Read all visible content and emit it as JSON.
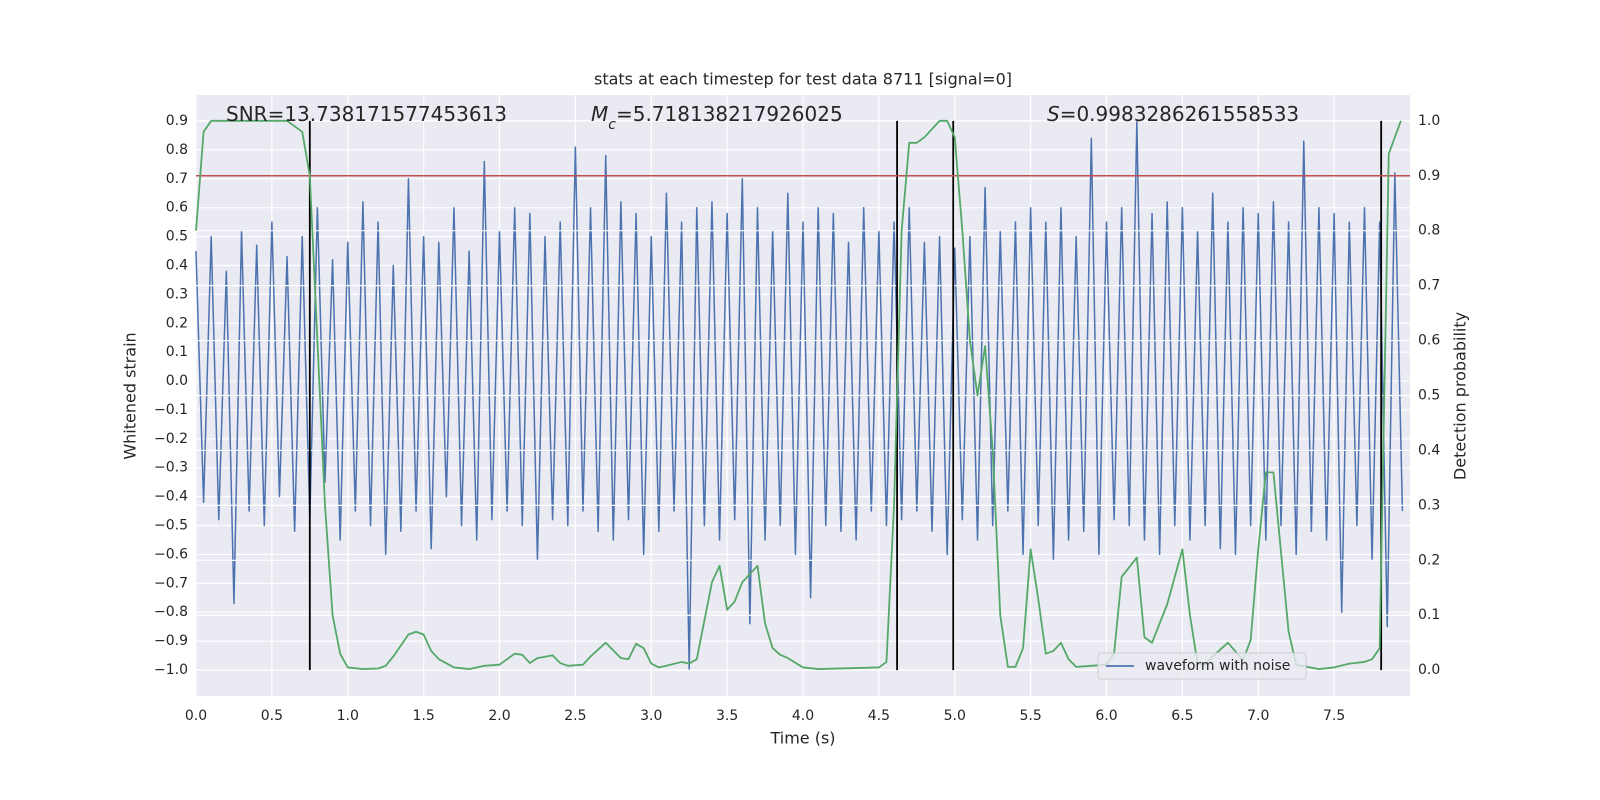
{
  "chart_data": {
    "type": "line",
    "title": "stats at each timestep for test data 8711 [signal=0]",
    "x_label": "Time (s)",
    "y_label": "Whitened strain",
    "y2_label": "Detection probability",
    "annotations": [
      {
        "symbol": "SNR",
        "text": "=13.738171577453613"
      },
      {
        "symbol": "M",
        "subscript": "c",
        "italic": true,
        "text": "=5.718138217926025"
      },
      {
        "symbol": "S",
        "italic": true,
        "text": "=0.9983286261558533"
      }
    ],
    "xlim": [
      0,
      8
    ],
    "xticks": [
      {
        "value": 0,
        "label": "0.0"
      },
      0.5,
      {
        "value": 1,
        "label": "1.0"
      },
      1.5,
      {
        "value": 2,
        "label": "2.0"
      },
      2.5,
      {
        "value": 3,
        "label": "3.0"
      },
      3.5,
      {
        "value": 4,
        "label": "4.0"
      },
      4.5,
      {
        "value": 5,
        "label": "5.0"
      },
      5.5,
      {
        "value": 6,
        "label": "6.0"
      },
      6.5,
      {
        "value": 7,
        "label": "7.0"
      },
      7.5
    ],
    "ylim": [
      -1.09,
      0.99
    ],
    "yticks": [
      {
        "value": -1,
        "label": "−1.0"
      },
      {
        "value": -0.9,
        "label": "−0.9"
      },
      {
        "value": -0.8,
        "label": "−0.8"
      },
      {
        "value": -0.7,
        "label": "−0.7"
      },
      {
        "value": -0.6,
        "label": "−0.6"
      },
      {
        "value": -0.5,
        "label": "−0.5"
      },
      {
        "value": -0.4,
        "label": "−0.4"
      },
      {
        "value": -0.3,
        "label": "−0.3"
      },
      {
        "value": -0.2,
        "label": "−0.2"
      },
      {
        "value": -0.1,
        "label": "−0.1"
      },
      {
        "value": 0,
        "label": "0.0"
      },
      0.1,
      0.2,
      0.3,
      0.4,
      0.5,
      0.6,
      0.7,
      0.8,
      0.9
    ],
    "y2lim": [
      -0.047,
      1.047
    ],
    "y2ticks": [
      {
        "value": 0,
        "label": "0.0"
      },
      0.1,
      0.2,
      0.3,
      0.4,
      0.5,
      0.6,
      0.7,
      0.8,
      0.9,
      {
        "value": 1,
        "label": "1.0"
      }
    ],
    "grid": true,
    "legend": "lower right",
    "series": [
      {
        "name": "waveform with noise",
        "color": "#4c72b0",
        "x": [
          0,
          0.05,
          0.1,
          0.15,
          0.2,
          0.25,
          0.3,
          0.35,
          0.4,
          0.45,
          0.5,
          0.55,
          0.6,
          0.65,
          0.7,
          0.75,
          0.8,
          0.85,
          0.9,
          0.95,
          1,
          1.05,
          1.1,
          1.15,
          1.2,
          1.25,
          1.3,
          1.35,
          1.4,
          1.45,
          1.5,
          1.55,
          1.6,
          1.65,
          1.7,
          1.75,
          1.8,
          1.85,
          1.9,
          1.95,
          2,
          2.05,
          2.1,
          2.15,
          2.2,
          2.25,
          2.3,
          2.35,
          2.4,
          2.45,
          2.5,
          2.55,
          2.6,
          2.65,
          2.7,
          2.75,
          2.8,
          2.85,
          2.9,
          2.95,
          3,
          3.05,
          3.1,
          3.15,
          3.2,
          3.25,
          3.3,
          3.35,
          3.4,
          3.45,
          3.5,
          3.55,
          3.6,
          3.65,
          3.7,
          3.75,
          3.8,
          3.85,
          3.9,
          3.95,
          4,
          4.05,
          4.1,
          4.15,
          4.2,
          4.25,
          4.3,
          4.35,
          4.4,
          4.45,
          4.5,
          4.55,
          4.6,
          4.65,
          4.7,
          4.75,
          4.8,
          4.85,
          4.9,
          4.95,
          5,
          5.05,
          5.1,
          5.15,
          5.2,
          5.25,
          5.3,
          5.35,
          5.4,
          5.45,
          5.5,
          5.55,
          5.6,
          5.65,
          5.7,
          5.75,
          5.8,
          5.85,
          5.9,
          5.95,
          6,
          6.05,
          6.1,
          6.15,
          6.2,
          6.25,
          6.3,
          6.35,
          6.4,
          6.45,
          6.5,
          6.55,
          6.6,
          6.65,
          6.7,
          6.75,
          6.8,
          6.85,
          6.9,
          6.95,
          7,
          7.05,
          7.1,
          7.15,
          7.2,
          7.25,
          7.3,
          7.35,
          7.4,
          7.45,
          7.5,
          7.55,
          7.6,
          7.65,
          7.7,
          7.75,
          7.8,
          7.85,
          7.9,
          7.95
        ],
        "values": [
          0.45,
          -0.42,
          0.5,
          -0.48,
          0.38,
          -0.77,
          0.52,
          -0.45,
          0.47,
          -0.5,
          0.55,
          -0.4,
          0.43,
          -0.52,
          0.5,
          -0.48,
          0.6,
          -0.35,
          0.42,
          -0.55,
          0.48,
          -0.45,
          0.62,
          -0.5,
          0.55,
          -0.6,
          0.4,
          -0.52,
          0.7,
          -0.45,
          0.5,
          -0.58,
          0.48,
          -0.4,
          0.6,
          -0.5,
          0.45,
          -0.55,
          0.76,
          -0.48,
          0.52,
          -0.45,
          0.6,
          -0.5,
          0.58,
          -0.62,
          0.5,
          -0.48,
          0.55,
          -0.5,
          0.81,
          -0.45,
          0.6,
          -0.52,
          0.78,
          -0.55,
          0.62,
          -0.48,
          0.58,
          -0.6,
          0.5,
          -0.52,
          0.65,
          -0.45,
          0.55,
          -1.0,
          0.6,
          -0.5,
          0.62,
          -0.55,
          0.58,
          -0.48,
          0.7,
          -0.84,
          0.6,
          -0.55,
          0.52,
          -0.5,
          0.65,
          -0.6,
          0.55,
          -0.75,
          0.6,
          -0.5,
          0.58,
          -0.52,
          0.48,
          -0.55,
          0.6,
          -0.45,
          0.52,
          -0.5,
          0.55,
          -0.48,
          0.6,
          -0.45,
          0.48,
          -0.52,
          0.5,
          -0.6,
          0.46,
          -0.48,
          0.5,
          -0.55,
          0.67,
          -0.5,
          0.52,
          -0.45,
          0.55,
          -0.6,
          0.6,
          -0.5,
          0.55,
          -0.62,
          0.6,
          -0.55,
          0.5,
          -0.52,
          0.84,
          -0.6,
          0.55,
          -0.48,
          0.6,
          -0.5,
          0.9,
          -0.55,
          0.58,
          -0.6,
          0.62,
          -0.5,
          0.6,
          -0.55,
          0.52,
          -0.5,
          0.65,
          -0.58,
          0.55,
          -0.6,
          0.6,
          -0.5,
          0.58,
          -0.55,
          0.62,
          -0.5,
          0.55,
          -0.6,
          0.83,
          -0.52,
          0.6,
          -0.55,
          0.58,
          -0.8,
          0.55,
          -0.5,
          0.6,
          -0.62,
          0.55,
          -0.85,
          0.72,
          -0.45
        ]
      },
      {
        "color": "#55a868",
        "axis": "y2",
        "x": [
          0,
          0.05,
          0.1,
          0.2,
          0.3,
          0.4,
          0.5,
          0.6,
          0.65,
          0.7,
          0.75,
          0.8,
          0.85,
          0.9,
          0.95,
          1,
          1.1,
          1.2,
          1.25,
          1.3,
          1.4,
          1.45,
          1.5,
          1.55,
          1.6,
          1.7,
          1.8,
          1.9,
          2,
          2.1,
          2.15,
          2.2,
          2.25,
          2.35,
          2.4,
          2.45,
          2.55,
          2.6,
          2.7,
          2.8,
          2.85,
          2.9,
          2.95,
          3,
          3.05,
          3.1,
          3.2,
          3.25,
          3.3,
          3.4,
          3.45,
          3.5,
          3.55,
          3.6,
          3.7,
          3.75,
          3.8,
          3.85,
          3.9,
          4,
          4.1,
          4.5,
          4.55,
          4.6,
          4.65,
          4.7,
          4.75,
          4.8,
          4.9,
          4.95,
          5,
          5.05,
          5.1,
          5.15,
          5.2,
          5.25,
          5.3,
          5.35,
          5.4,
          5.45,
          5.5,
          5.55,
          5.6,
          5.65,
          5.7,
          5.75,
          5.8,
          5.9,
          6,
          6.05,
          6.1,
          6.2,
          6.25,
          6.3,
          6.4,
          6.5,
          6.55,
          6.6,
          6.65,
          6.7,
          6.8,
          6.9,
          6.95,
          7,
          7.05,
          7.1,
          7.2,
          7.25,
          7.4,
          7.5,
          7.6,
          7.7,
          7.75,
          7.8,
          7.86,
          7.94
        ],
        "values": [
          0.8,
          0.98,
          1,
          1,
          1,
          1,
          1,
          1,
          0.99,
          0.98,
          0.9,
          0.6,
          0.3,
          0.1,
          0.03,
          0.005,
          0.002,
          0.003,
          0.008,
          0.025,
          0.065,
          0.07,
          0.065,
          0.035,
          0.02,
          0.005,
          0.002,
          0.008,
          0.01,
          0.03,
          0.028,
          0.013,
          0.022,
          0.027,
          0.013,
          0.008,
          0.01,
          0.025,
          0.05,
          0.022,
          0.02,
          0.048,
          0.04,
          0.012,
          0.005,
          0.008,
          0.015,
          0.012,
          0.02,
          0.16,
          0.19,
          0.11,
          0.125,
          0.16,
          0.19,
          0.085,
          0.04,
          0.028,
          0.022,
          0.005,
          0.002,
          0.005,
          0.015,
          0.3,
          0.8,
          0.96,
          0.96,
          0.97,
          1,
          1,
          0.97,
          0.8,
          0.6,
          0.5,
          0.59,
          0.4,
          0.1,
          0.006,
          0.006,
          0.04,
          0.22,
          0.13,
          0.03,
          0.035,
          0.05,
          0.02,
          0.006,
          0.008,
          0.01,
          0.03,
          0.17,
          0.205,
          0.06,
          0.05,
          0.12,
          0.22,
          0.1,
          0.012,
          0.01,
          0.025,
          0.05,
          0.018,
          0.055,
          0.22,
          0.36,
          0.36,
          0.07,
          0.01,
          0.002,
          0.005,
          0.012,
          0.015,
          0.02,
          0.04,
          0.94,
          1
        ]
      }
    ],
    "vlines": {
      "x": [
        0.75,
        4.62,
        4.99,
        7.81
      ],
      "ymin": 0,
      "ymax": 1,
      "axis": "y2",
      "color": "#000000"
    },
    "hline": {
      "value": 0.9,
      "axis": "y2",
      "color": "#c44e52"
    }
  }
}
